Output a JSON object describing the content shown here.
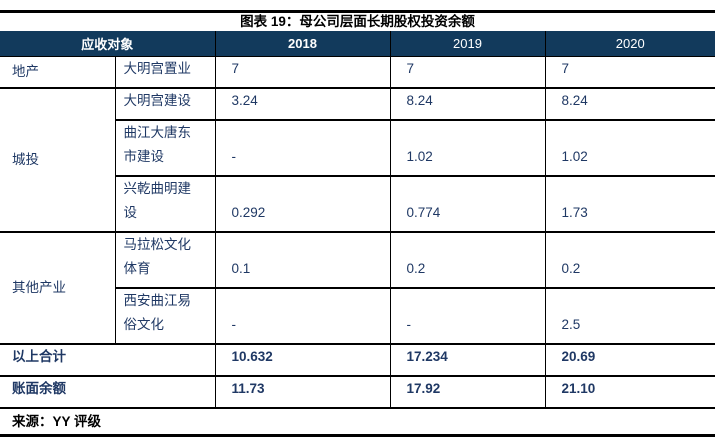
{
  "title": "图表 19：母公司层面长期股权投资余额",
  "colors": {
    "header_bg": "#123A5C",
    "header_text": "#FFFFFF",
    "body_text": "#1F3864",
    "rule": "#000000"
  },
  "table": {
    "header": {
      "col_label": "应收对象",
      "years": [
        "2018",
        "2019",
        "2020"
      ]
    },
    "groups": [
      {
        "category": "地产",
        "rows": [
          {
            "name": "大明宫置业",
            "values": [
              "7",
              "7",
              "7"
            ]
          }
        ]
      },
      {
        "category": "城投",
        "rows": [
          {
            "name": "大明宫建设",
            "values": [
              "3.24",
              "8.24",
              "8.24"
            ]
          },
          {
            "name": "曲江大唐东\n市建设",
            "values": [
              "-",
              "1.02",
              "1.02"
            ]
          },
          {
            "name": "兴乾曲明建\n设",
            "values": [
              "0.292",
              "0.774",
              "1.73"
            ]
          }
        ]
      },
      {
        "category": "其他产业",
        "rows": [
          {
            "name": "马拉松文化\n体育",
            "values": [
              "0.1",
              "0.2",
              "0.2"
            ]
          },
          {
            "name": "西安曲江易\n俗文化",
            "values": [
              "-",
              "-",
              "2.5"
            ]
          }
        ]
      }
    ],
    "totals": [
      {
        "label": "以上合计",
        "values": [
          "10.632",
          "17.234",
          "20.69"
        ]
      },
      {
        "label": "账面余额",
        "values": [
          "11.73",
          "17.92",
          "21.10"
        ]
      }
    ]
  },
  "source": "来源：YY 评级"
}
